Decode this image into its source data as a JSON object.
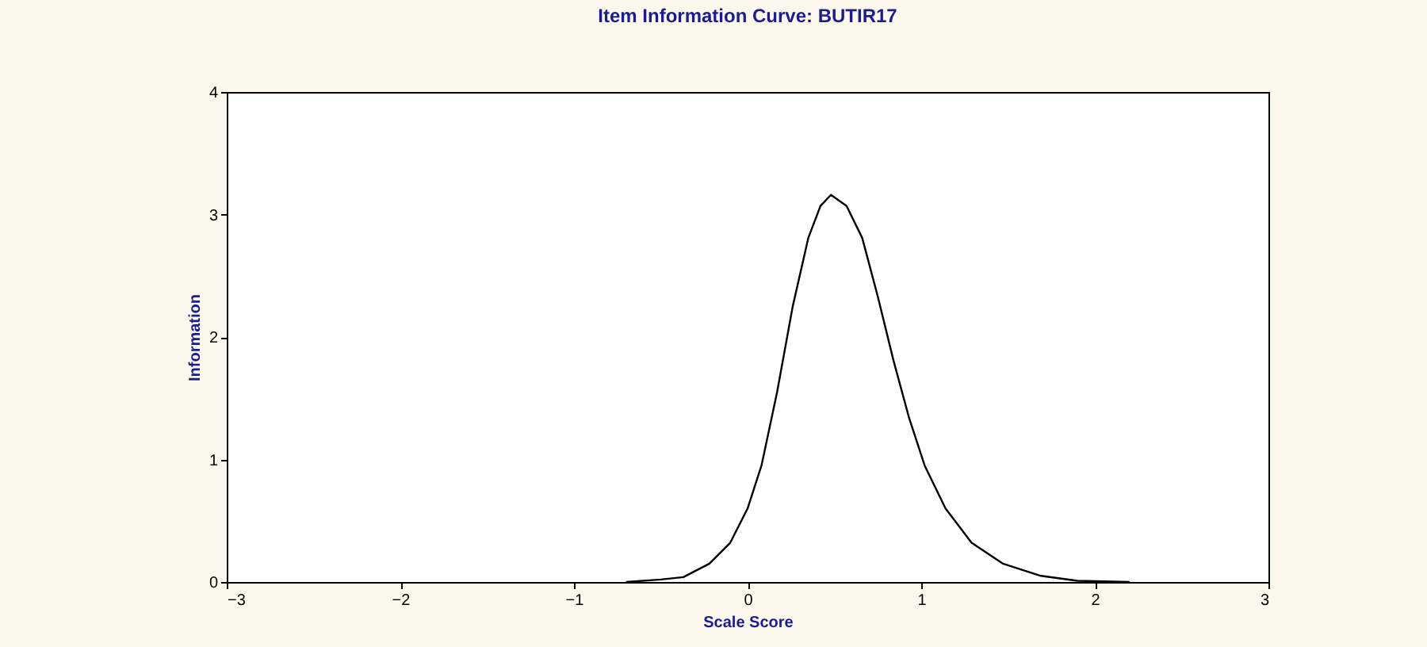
{
  "chart_data": {
    "type": "line",
    "title": "Item Information Curve: BUTIR17",
    "xlabel": "Scale Score",
    "ylabel": "Information",
    "xlim": [
      -3,
      3
    ],
    "xticks": [
      -3,
      -2,
      -1,
      0,
      1,
      2,
      3
    ],
    "ylim": [
      0,
      4
    ],
    "yticks": [
      0,
      1,
      2,
      3,
      4
    ],
    "grid": false,
    "legend": false,
    "marker": "none",
    "line_style": "solid",
    "series": [
      {
        "color": "#000000",
        "x": [
          -0.7,
          -0.5,
          -0.37,
          -0.22,
          -0.1,
          0.0,
          0.08,
          0.17,
          0.26,
          0.35,
          0.42,
          0.48,
          0.57,
          0.66,
          0.75,
          0.84,
          0.93,
          1.02,
          1.14,
          1.29,
          1.47,
          1.69,
          1.9,
          2.2
        ],
        "values": [
          0.0,
          0.02,
          0.04,
          0.15,
          0.32,
          0.6,
          0.95,
          1.55,
          2.25,
          2.81,
          3.07,
          3.16,
          3.07,
          2.81,
          2.33,
          1.81,
          1.34,
          0.95,
          0.6,
          0.32,
          0.15,
          0.05,
          0.01,
          0.0
        ]
      }
    ]
  }
}
